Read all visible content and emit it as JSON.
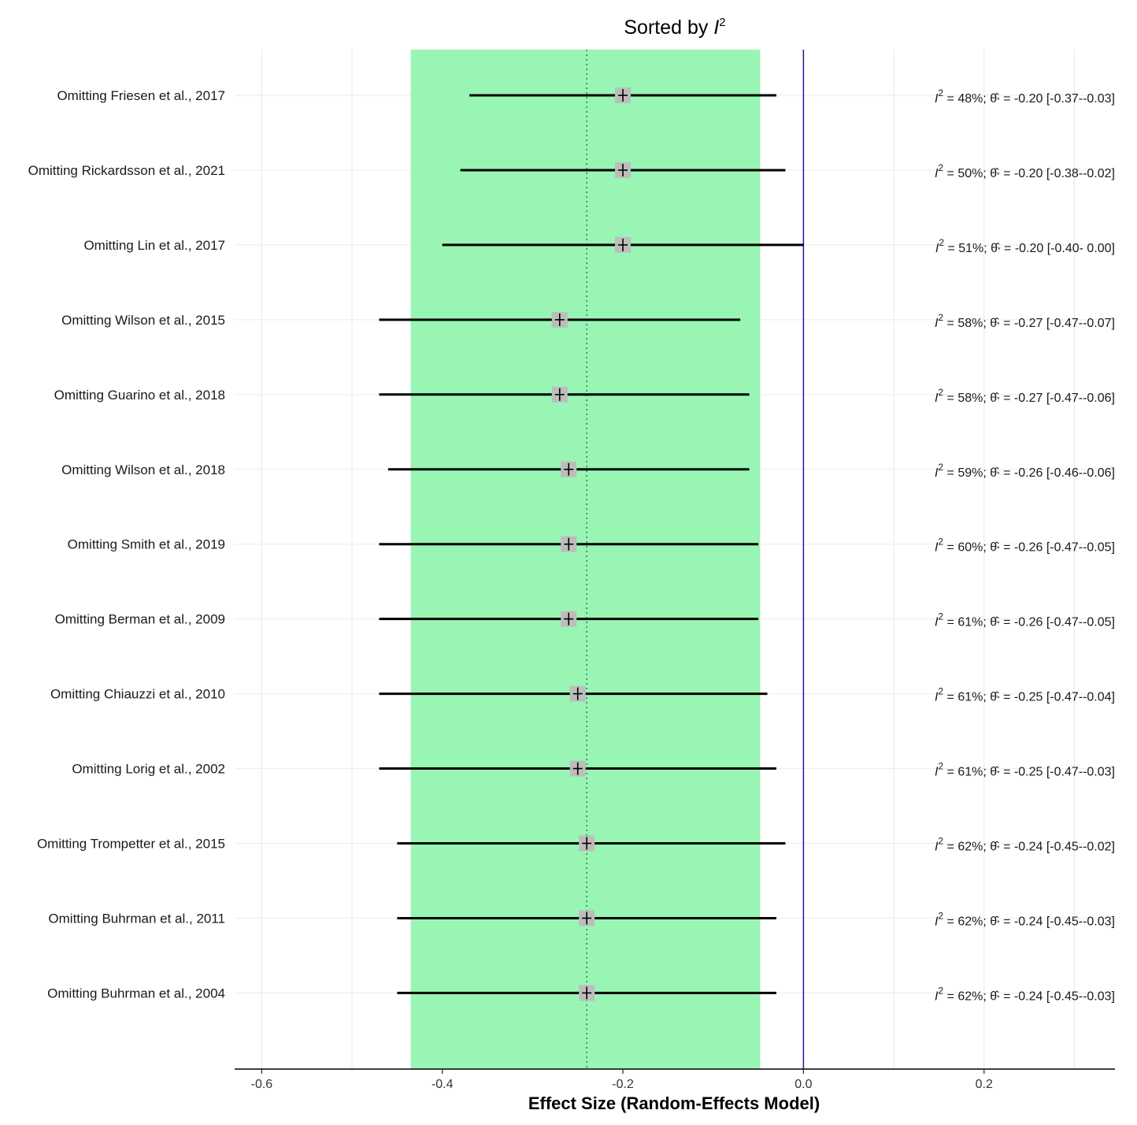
{
  "chart_data": {
    "type": "forest",
    "title_prefix": "Sorted by ",
    "title_symbol": "I",
    "title_sup": "2",
    "xlabel": "Effect Size (Random-Effects Model)",
    "xlim": [
      -0.63,
      0.345
    ],
    "x_ticks": [
      -0.6,
      -0.4,
      -0.2,
      0.0,
      0.2
    ],
    "x_tick_labels": [
      "-0.6",
      "-0.4",
      "-0.2",
      "0.0",
      "0.2"
    ],
    "pooled_estimate": -0.24,
    "pooled_ci": [
      -0.435,
      -0.048
    ],
    "null_line": 0.0,
    "colors": {
      "ci_band": "#98f5b3",
      "null_line": "#1a1aa8",
      "pooled_line": "#2e8b57",
      "point_box": "#bdbdbd",
      "ci_line": "#000000",
      "grid": "#ebebeb"
    },
    "studies": [
      {
        "label": "Omitting Friesen et al., 2017",
        "est": -0.2,
        "lo": -0.37,
        "hi": -0.03,
        "i2_text": "= 48%;",
        "est_text": "= -0.20 [-0.37--0.03]"
      },
      {
        "label": "Omitting Rickardsson et al., 2021",
        "est": -0.2,
        "lo": -0.38,
        "hi": -0.02,
        "i2_text": "= 50%;",
        "est_text": "= -0.20 [-0.38--0.02]"
      },
      {
        "label": "Omitting Lin et al., 2017",
        "est": -0.2,
        "lo": -0.4,
        "hi": 0.0,
        "i2_text": "= 51%;",
        "est_text": "= -0.20 [-0.40- 0.00]"
      },
      {
        "label": "Omitting Wilson et al., 2015",
        "est": -0.27,
        "lo": -0.47,
        "hi": -0.07,
        "i2_text": "= 58%;",
        "est_text": "= -0.27 [-0.47--0.07]"
      },
      {
        "label": "Omitting Guarino et al., 2018",
        "est": -0.27,
        "lo": -0.47,
        "hi": -0.06,
        "i2_text": "= 58%;",
        "est_text": "= -0.27 [-0.47--0.06]"
      },
      {
        "label": "Omitting Wilson et al., 2018",
        "est": -0.26,
        "lo": -0.46,
        "hi": -0.06,
        "i2_text": "= 59%;",
        "est_text": "= -0.26 [-0.46--0.06]"
      },
      {
        "label": "Omitting Smith et al., 2019",
        "est": -0.26,
        "lo": -0.47,
        "hi": -0.05,
        "i2_text": "= 60%;",
        "est_text": "= -0.26 [-0.47--0.05]"
      },
      {
        "label": "Omitting Berman et al., 2009",
        "est": -0.26,
        "lo": -0.47,
        "hi": -0.05,
        "i2_text": "= 61%;",
        "est_text": "= -0.26 [-0.47--0.05]"
      },
      {
        "label": "Omitting Chiauzzi et al., 2010",
        "est": -0.25,
        "lo": -0.47,
        "hi": -0.04,
        "i2_text": "= 61%;",
        "est_text": "= -0.25 [-0.47--0.04]"
      },
      {
        "label": "Omitting Lorig et al., 2002",
        "est": -0.25,
        "lo": -0.47,
        "hi": -0.03,
        "i2_text": "= 61%;",
        "est_text": "= -0.25 [-0.47--0.03]"
      },
      {
        "label": "Omitting Trompetter et al., 2015",
        "est": -0.24,
        "lo": -0.45,
        "hi": -0.02,
        "i2_text": "= 62%;",
        "est_text": "= -0.24 [-0.45--0.02]"
      },
      {
        "label": "Omitting Buhrman et al., 2011",
        "est": -0.24,
        "lo": -0.45,
        "hi": -0.03,
        "i2_text": "= 62%;",
        "est_text": "= -0.24 [-0.45--0.03]"
      },
      {
        "label": "Omitting Buhrman et al., 2004",
        "est": -0.24,
        "lo": -0.45,
        "hi": -0.03,
        "i2_text": "= 62%;",
        "est_text": "= -0.24 [-0.45--0.03]"
      }
    ]
  }
}
